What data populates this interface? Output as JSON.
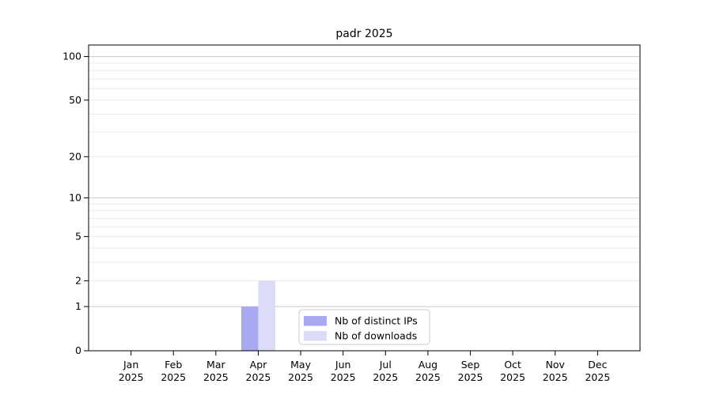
{
  "chart_data": {
    "type": "bar",
    "title": "padr 2025",
    "categories": [
      "Jan",
      "Feb",
      "Mar",
      "Apr",
      "May",
      "Jun",
      "Jul",
      "Aug",
      "Sep",
      "Oct",
      "Nov",
      "Dec"
    ],
    "category_year": "2025",
    "series": [
      {
        "name": "Nb of distinct IPs",
        "slug": "distinct-ips",
        "color": "#a9a9f2",
        "values": [
          0,
          0,
          0,
          1,
          0,
          0,
          0,
          0,
          0,
          0,
          0,
          0
        ]
      },
      {
        "name": "Nb of downloads",
        "slug": "downloads",
        "color": "#dcdcf8",
        "values": [
          0,
          0,
          0,
          2,
          0,
          0,
          0,
          0,
          0,
          0,
          0,
          0
        ]
      }
    ],
    "y_axis": {
      "scale": "log10(1+y)",
      "tick_values": [
        0,
        1,
        2,
        5,
        10,
        20,
        50,
        100
      ],
      "major_grid_values": [
        1,
        10,
        100
      ],
      "minor_grid_values": [
        2,
        3,
        4,
        5,
        6,
        7,
        8,
        9,
        20,
        30,
        40,
        50,
        60,
        70,
        80,
        90
      ],
      "range": [
        0,
        119
      ]
    },
    "grid": "horizontal",
    "legend": {
      "position": "inside-bottom-center",
      "entries": [
        "Nb of distinct IPs",
        "Nb of downloads"
      ]
    },
    "colors": {
      "background": "#ffffff",
      "spine": "#000000",
      "text": "#000000",
      "grid_major": "#c9c9c9",
      "grid_minor": "#e9e9e9",
      "legend_border": "#cccccc",
      "legend_fill": "#ffffff",
      "bar_distinct_ips": "#a9a9f2",
      "bar_downloads": "#dcdcf8"
    }
  }
}
